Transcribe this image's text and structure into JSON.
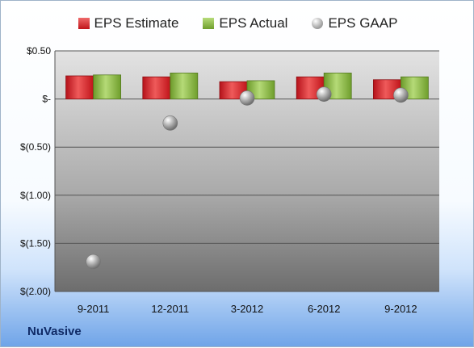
{
  "chart_data": {
    "type": "bar",
    "title": "",
    "xlabel": "",
    "ylabel": "",
    "categories": [
      "9-2011",
      "12-2011",
      "3-2012",
      "6-2012",
      "9-2012"
    ],
    "series": [
      {
        "name": "EPS Estimate",
        "kind": "bar",
        "color": "#e0262b",
        "values": [
          0.24,
          0.23,
          0.18,
          0.23,
          0.2
        ]
      },
      {
        "name": "EPS Actual",
        "kind": "bar",
        "color": "#8cc045",
        "values": [
          0.25,
          0.27,
          0.19,
          0.27,
          0.23
        ]
      },
      {
        "name": "EPS GAAP",
        "kind": "marker",
        "color": "#b8b8b8",
        "values": [
          -1.69,
          -0.25,
          0.01,
          0.05,
          0.04
        ]
      }
    ],
    "ylim": [
      -2.0,
      0.5
    ],
    "yticks": [
      0.5,
      0.0,
      -0.5,
      -1.0,
      -1.5,
      -2.0
    ],
    "ytick_labels": [
      "$0.50",
      "$-",
      "$(0.50)",
      "$(1.00)",
      "$(1.50)",
      "$(2.00)"
    ],
    "grid": true,
    "legend_position": "top"
  },
  "footer": {
    "company": "NuVasive"
  }
}
